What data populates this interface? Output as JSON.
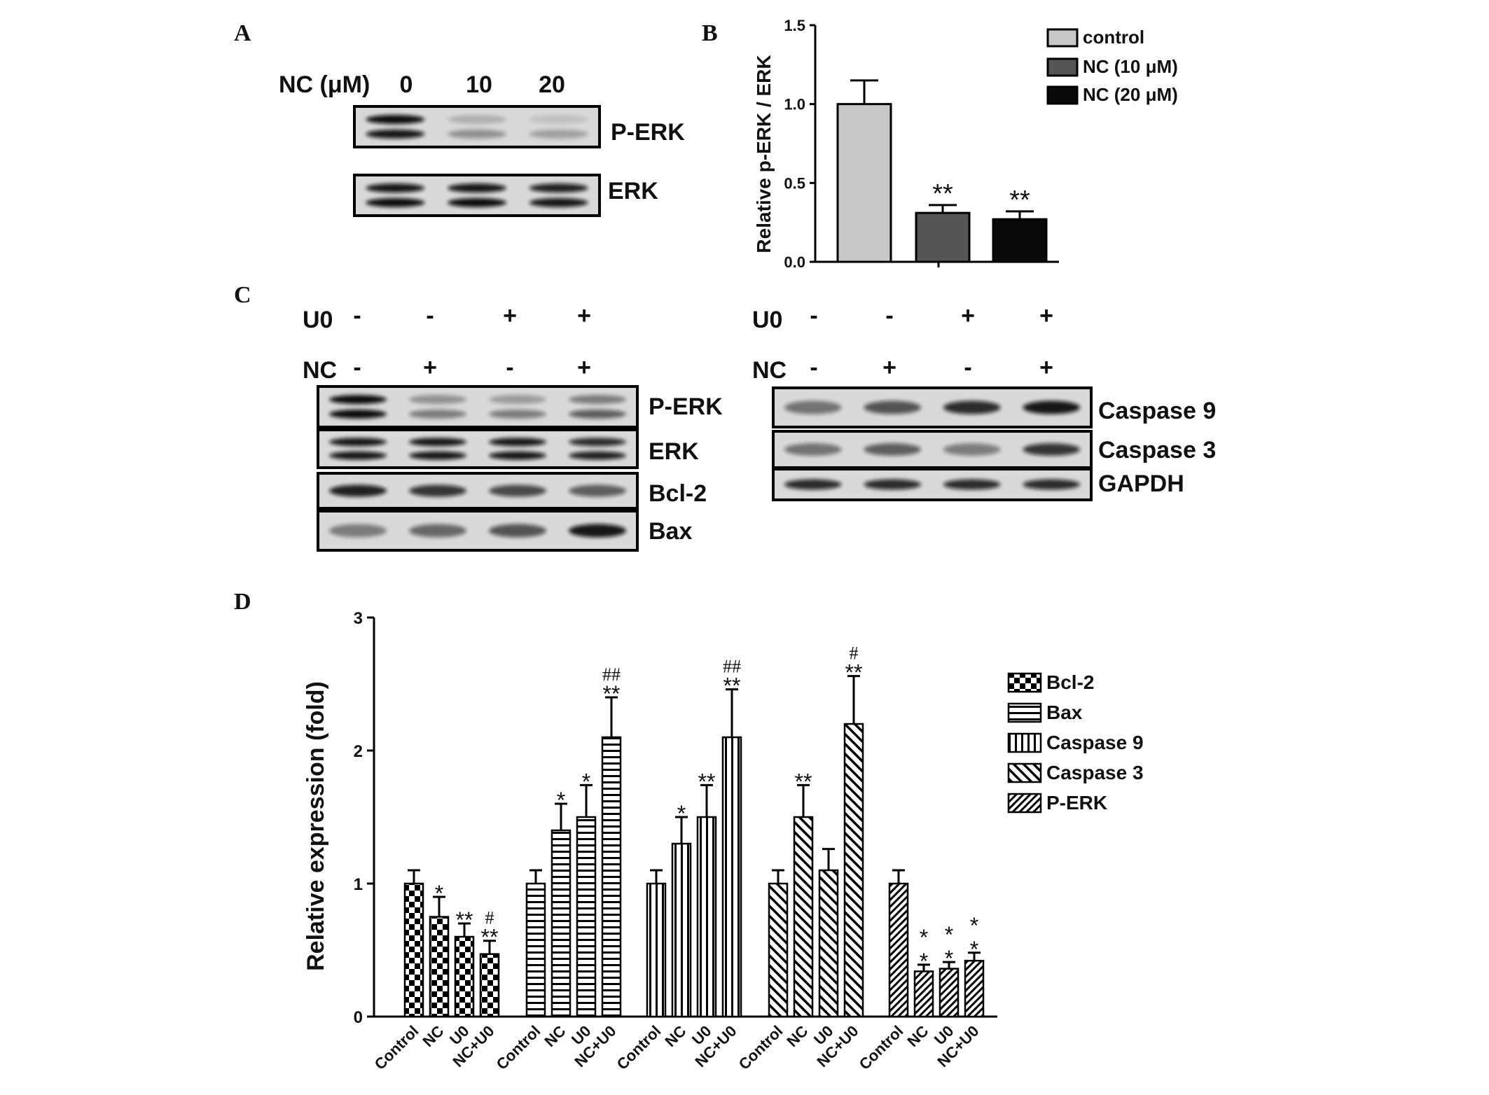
{
  "panel_letters": {
    "a": "A",
    "b": "B",
    "c": "C",
    "d": "D"
  },
  "panel_a": {
    "dose_label": "NC (μM)",
    "doses": [
      "0",
      "10",
      "20"
    ],
    "blots": [
      "P-ERK",
      "ERK"
    ],
    "intensities": {
      "P-ERK": [
        [
          1.0,
          0.95
        ],
        [
          0.2,
          0.35
        ],
        [
          0.12,
          0.28
        ]
      ],
      "ERK": [
        [
          0.95,
          1.0
        ],
        [
          0.95,
          1.0
        ],
        [
          0.9,
          0.95
        ]
      ]
    }
  },
  "panel_c_left": {
    "row_labels": [
      "U0",
      "NC"
    ],
    "signs": [
      [
        "-",
        "-",
        "+",
        "+"
      ],
      [
        "-",
        "+",
        "-",
        "+"
      ]
    ],
    "blots": [
      "P-ERK",
      "ERK",
      "Bcl-2",
      "Bax"
    ],
    "intensities": {
      "P-ERK": [
        [
          1.0,
          1.0
        ],
        [
          0.35,
          0.45
        ],
        [
          0.3,
          0.45
        ],
        [
          0.45,
          0.6
        ]
      ],
      "ERK": [
        [
          0.95,
          0.95
        ],
        [
          0.95,
          0.95
        ],
        [
          0.95,
          0.95
        ],
        [
          0.85,
          0.9
        ]
      ],
      "Bcl-2": [
        [
          0.9
        ],
        [
          0.8
        ],
        [
          0.7
        ],
        [
          0.6
        ]
      ],
      "Bax": [
        [
          0.45
        ],
        [
          0.55
        ],
        [
          0.65
        ],
        [
          0.95
        ]
      ]
    }
  },
  "panel_c_right": {
    "row_labels": [
      "U0",
      "NC"
    ],
    "signs": [
      [
        "-",
        "-",
        "+",
        "+"
      ],
      [
        "-",
        "+",
        "-",
        "+"
      ]
    ],
    "blots": [
      "Caspase 9",
      "Caspase 3",
      "GAPDH"
    ],
    "intensities": {
      "Caspase 9": [
        [
          0.5
        ],
        [
          0.65
        ],
        [
          0.85
        ],
        [
          0.95
        ]
      ],
      "Caspase 3": [
        [
          0.5
        ],
        [
          0.6
        ],
        [
          0.45
        ],
        [
          0.8
        ]
      ],
      "GAPDH": [
        [
          0.85
        ],
        [
          0.85
        ],
        [
          0.85
        ],
        [
          0.85
        ]
      ]
    }
  },
  "colors": {
    "control": "#c8c8c8",
    "nc10": "#555555",
    "nc20": "#0a0a0a",
    "ink": "#000000"
  },
  "chart_data": [
    {
      "type": "bar",
      "panel": "B",
      "title": "",
      "xlabel": "",
      "ylabel": "Relative p-ERK / ERK",
      "ylim": [
        0,
        1.5
      ],
      "yticks": [
        "0.0",
        "0.5",
        "1.0",
        "1.5"
      ],
      "legend_position": "top-right",
      "series": [
        {
          "name": "control",
          "value": 1.0,
          "error": 0.15,
          "sig": ""
        },
        {
          "name": "NC (10 μM)",
          "value": 0.31,
          "error": 0.05,
          "sig": "**"
        },
        {
          "name": "NC (20 μM)",
          "value": 0.27,
          "error": 0.05,
          "sig": "**"
        }
      ]
    },
    {
      "type": "bar",
      "panel": "D",
      "title": "",
      "xlabel": "",
      "ylabel": "Relative expression (fold)",
      "ylim": [
        0,
        3
      ],
      "yticks": [
        "0",
        "1",
        "2",
        "3"
      ],
      "legend_position": "right",
      "categories": [
        "Control",
        "NC",
        "U0",
        "NC+U0"
      ],
      "series": [
        {
          "name": "Bcl-2",
          "pattern": "check",
          "values": [
            1.0,
            0.75,
            0.6,
            0.47
          ],
          "errors": [
            0.1,
            0.15,
            0.1,
            0.1
          ],
          "sig": [
            "",
            "*",
            "**",
            "**"
          ],
          "hash": [
            "",
            "",
            "",
            "#"
          ]
        },
        {
          "name": "Bax",
          "pattern": "hlines",
          "values": [
            1.0,
            1.4,
            1.5,
            2.1
          ],
          "errors": [
            0.1,
            0.2,
            0.24,
            0.3
          ],
          "sig": [
            "",
            "*",
            "*",
            "**"
          ],
          "hash": [
            "",
            "",
            "",
            "##"
          ]
        },
        {
          "name": "Caspase 9",
          "pattern": "vlines",
          "values": [
            1.0,
            1.3,
            1.5,
            2.1
          ],
          "errors": [
            0.1,
            0.2,
            0.24,
            0.36
          ],
          "sig": [
            "",
            "*",
            "**",
            "**"
          ],
          "hash": [
            "",
            "",
            "",
            "##"
          ]
        },
        {
          "name": "Caspase 3",
          "pattern": "diag",
          "values": [
            1.0,
            1.5,
            1.1,
            2.2
          ],
          "errors": [
            0.1,
            0.24,
            0.16,
            0.36
          ],
          "sig": [
            "",
            "**",
            "",
            "**"
          ],
          "hash": [
            "",
            "",
            "",
            "#"
          ]
        },
        {
          "name": "P-ERK",
          "pattern": "diagdense",
          "values": [
            1.0,
            0.34,
            0.36,
            0.42
          ],
          "errors": [
            0.1,
            0.05,
            0.05,
            0.06
          ],
          "sig": [
            "",
            "*\n*",
            "*\n*",
            "*\n*"
          ],
          "hash": [
            "",
            "",
            "",
            ""
          ]
        }
      ]
    }
  ]
}
